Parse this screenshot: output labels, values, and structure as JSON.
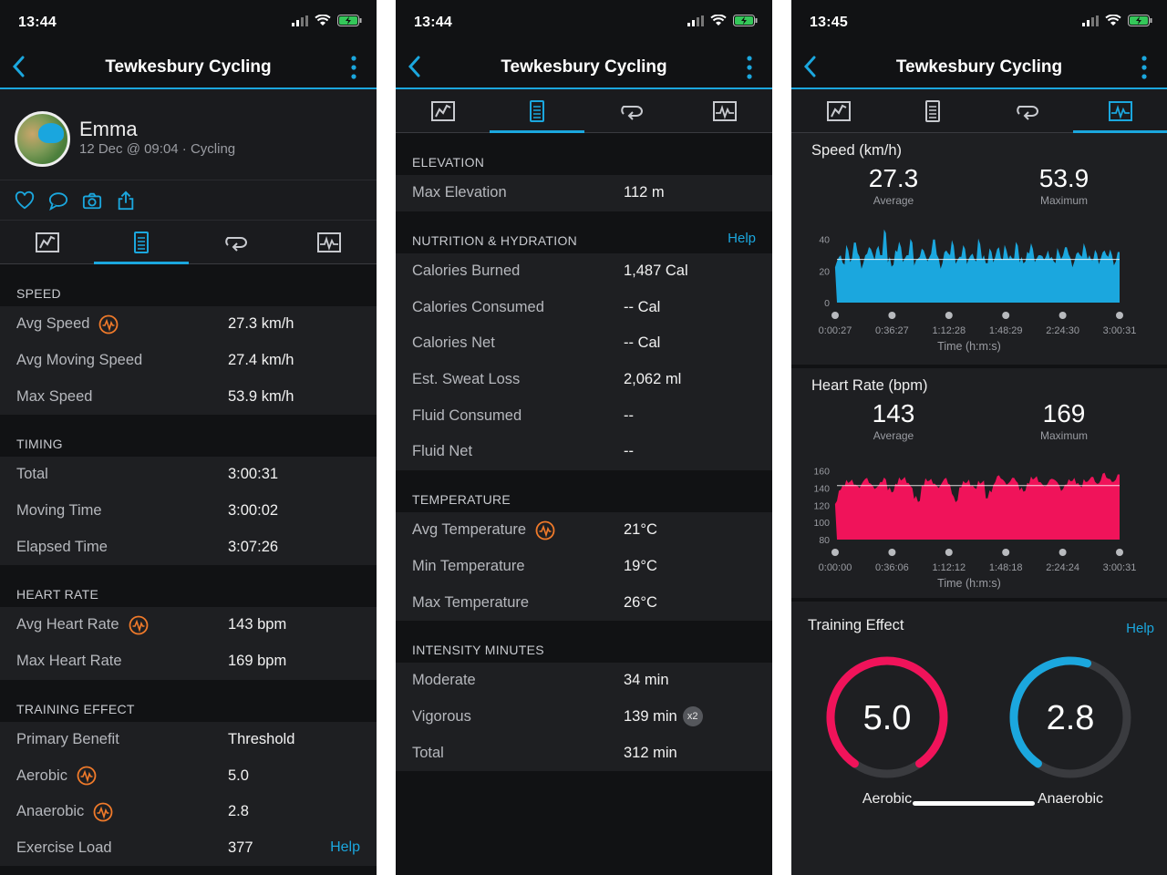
{
  "app": {
    "title": "Tewkesbury Cycling"
  },
  "status": {
    "time1": "13:44",
    "time2": "13:44",
    "time3": "13:45"
  },
  "profile": {
    "name": "Emma",
    "meta": "12 Dec @ 09:04 · Cycling"
  },
  "icons": {
    "back": "chevron-left-icon",
    "menu": "kebab-menu-icon",
    "actions": [
      "heart-icon",
      "comment-icon",
      "camera-icon",
      "share-icon"
    ],
    "tabs": [
      "map-icon",
      "stats-icon",
      "laps-icon",
      "charts-icon"
    ],
    "metric": "training-metric-icon"
  },
  "colors": {
    "accent": "#1ba7de",
    "speed": "#1ba7de",
    "heart": "#f0135a",
    "aerobic": "#f0135a",
    "anaerobic": "#1ba7de",
    "metric": "#f07a2a"
  },
  "panel1": {
    "sections": [
      {
        "header": "SPEED",
        "rows": [
          {
            "label": "Avg Speed",
            "value": "27.3 km/h",
            "icon": true
          },
          {
            "label": "Avg Moving Speed",
            "value": "27.4 km/h"
          },
          {
            "label": "Max Speed",
            "value": "53.9 km/h"
          }
        ]
      },
      {
        "header": "TIMING",
        "rows": [
          {
            "label": "Total",
            "value": "3:00:31"
          },
          {
            "label": "Moving Time",
            "value": "3:00:02"
          },
          {
            "label": "Elapsed Time",
            "value": "3:07:26"
          }
        ]
      },
      {
        "header": "HEART RATE",
        "rows": [
          {
            "label": "Avg Heart Rate",
            "value": "143 bpm",
            "icon": true
          },
          {
            "label": "Max Heart Rate",
            "value": "169 bpm"
          }
        ]
      },
      {
        "header": "TRAINING EFFECT",
        "rows": [
          {
            "label": "Primary Benefit",
            "value": "Threshold"
          },
          {
            "label": "Aerobic",
            "value": "5.0",
            "icon": true
          },
          {
            "label": "Anaerobic",
            "value": "2.8",
            "icon": true
          },
          {
            "label": "Exercise Load",
            "value": "377",
            "help": "Help"
          }
        ]
      }
    ]
  },
  "panel2": {
    "sections": [
      {
        "header": "ELEVATION",
        "rows": [
          {
            "label": "Max Elevation",
            "value": "112 m"
          }
        ]
      },
      {
        "header": "NUTRITION & HYDRATION",
        "help": "Help",
        "rows": [
          {
            "label": "Calories Burned",
            "value": "1,487 Cal"
          },
          {
            "label": "Calories Consumed",
            "value": "-- Cal"
          },
          {
            "label": "Calories Net",
            "value": "-- Cal"
          },
          {
            "label": "Est. Sweat Loss",
            "value": "2,062 ml"
          },
          {
            "label": "Fluid Consumed",
            "value": "--"
          },
          {
            "label": "Fluid Net",
            "value": "--"
          }
        ]
      },
      {
        "header": "TEMPERATURE",
        "rows": [
          {
            "label": "Avg Temperature",
            "value": "21°C",
            "icon": true
          },
          {
            "label": "Min Temperature",
            "value": "19°C"
          },
          {
            "label": "Max Temperature",
            "value": "26°C"
          }
        ]
      },
      {
        "header": "INTENSITY MINUTES",
        "rows": [
          {
            "label": "Moderate",
            "value": "34 min"
          },
          {
            "label": "Vigorous",
            "value": "139 min",
            "badge": "x2"
          },
          {
            "label": "Total",
            "value": "312 min"
          }
        ]
      }
    ]
  },
  "panel3": {
    "speed": {
      "title": "Speed (km/h)",
      "avg": "27.3",
      "avg_label": "Average",
      "max": "53.9",
      "max_label": "Maximum"
    },
    "heart": {
      "title": "Heart Rate (bpm)",
      "avg": "143",
      "avg_label": "Average",
      "max": "169",
      "max_label": "Maximum"
    },
    "training": {
      "title": "Training Effect",
      "help": "Help",
      "aerobic": "5.0",
      "aerobic_label": "Aerobic",
      "anaerobic": "2.8",
      "anaerobic_label": "Anaerobic",
      "aerobic_fraction": 1.0,
      "anaerobic_fraction": 0.56
    }
  },
  "chart_data": [
    {
      "type": "area",
      "title": "Speed (km/h)",
      "xlabel": "Time (h:m:s)",
      "x_ticks": [
        "0:00:27",
        "0:36:27",
        "1:12:28",
        "1:48:29",
        "2:24:30",
        "3:00:31"
      ],
      "y_ticks": [
        0,
        20,
        40
      ],
      "ylim": [
        0,
        45
      ],
      "average_line": 27.3,
      "grid": false,
      "series": [
        {
          "values": [
            26,
            30,
            24,
            33,
            28,
            38,
            29,
            25,
            31,
            34,
            27,
            36,
            30,
            44,
            29,
            24,
            32,
            35,
            28,
            30,
            38,
            27,
            29,
            33,
            26,
            31,
            40,
            28,
            25,
            33,
            30,
            36,
            27,
            29,
            34,
            28,
            31,
            26,
            37,
            30,
            25,
            32,
            29,
            35,
            27,
            33,
            30,
            28,
            36,
            29,
            26,
            31,
            34,
            28,
            30,
            27,
            33,
            29,
            25,
            31,
            30,
            35,
            28,
            26,
            32,
            29,
            34,
            30,
            27,
            31,
            28,
            33,
            29,
            30,
            26,
            32
          ]
        }
      ]
    },
    {
      "type": "area",
      "title": "Heart Rate (bpm)",
      "xlabel": "Time (h:m:s)",
      "x_ticks": [
        "0:00:00",
        "0:36:06",
        "1:12:12",
        "1:48:18",
        "2:24:24",
        "3:00:31"
      ],
      "y_ticks": [
        80,
        100,
        120,
        140,
        160
      ],
      "ylim": [
        80,
        165
      ],
      "average_line": 143,
      "grid": false,
      "series": [
        {
          "values": [
            125,
            138,
            142,
            146,
            150,
            144,
            140,
            148,
            152,
            145,
            139,
            143,
            147,
            150,
            141,
            136,
            144,
            149,
            153,
            146,
            140,
            131,
            125,
            142,
            148,
            151,
            145,
            140,
            147,
            152,
            144,
            130,
            126,
            141,
            146,
            150,
            143,
            139,
            145,
            149,
            128,
            135,
            147,
            155,
            150,
            144,
            148,
            152,
            146,
            141,
            137,
            145,
            150,
            154,
            147,
            142,
            146,
            151,
            149,
            143,
            139,
            144,
            148,
            152,
            146,
            141,
            147,
            150,
            153,
            145,
            149,
            158,
            151,
            147,
            150,
            156
          ]
        }
      ]
    }
  ]
}
